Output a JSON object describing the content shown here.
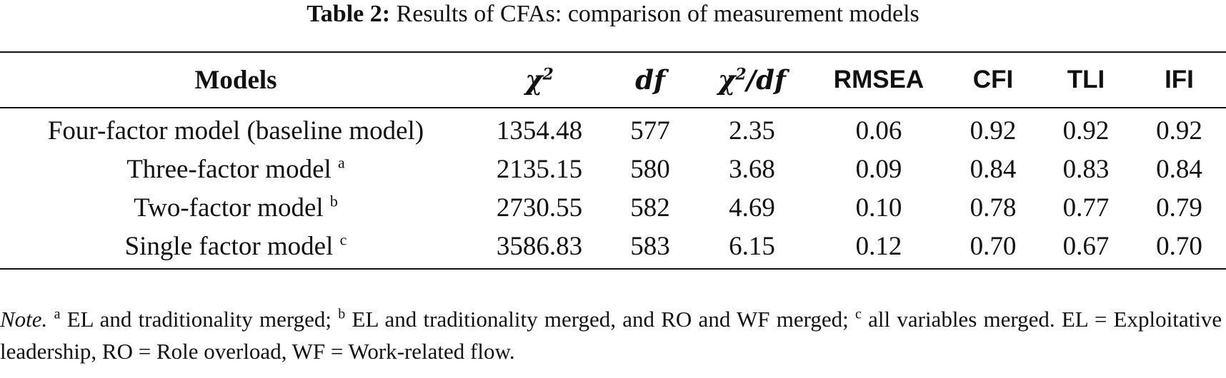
{
  "caption": {
    "label": "Table 2:",
    "title": "Results of CFAs: comparison of measurement models"
  },
  "table": {
    "headers": {
      "models": "Models",
      "chi_sq_base": "χ",
      "chi_sq_exp": "2",
      "df": "df",
      "chi_df_base": "χ",
      "chi_df_exp": "2",
      "chi_df_rest": "/df",
      "rmsea": "RMSEA",
      "cfi": "CFI",
      "tli": "TLI",
      "ifi": "IFI"
    },
    "rows": [
      {
        "model": "Four-factor model (baseline model)",
        "sup": "",
        "chi2": "1354.48",
        "df": "577",
        "chi2_df": "2.35",
        "rmsea": "0.06",
        "cfi": "0.92",
        "tli": "0.92",
        "ifi": "0.92"
      },
      {
        "model": "Three-factor model",
        "sup": "a",
        "chi2": "2135.15",
        "df": "580",
        "chi2_df": "3.68",
        "rmsea": "0.09",
        "cfi": "0.84",
        "tli": "0.83",
        "ifi": "0.84"
      },
      {
        "model": "Two-factor model",
        "sup": "b",
        "chi2": "2730.55",
        "df": "582",
        "chi2_df": "4.69",
        "rmsea": "0.10",
        "cfi": "0.78",
        "tli": "0.77",
        "ifi": "0.79"
      },
      {
        "model": "Single factor model",
        "sup": "c",
        "chi2": "3586.83",
        "df": "583",
        "chi2_df": "6.15",
        "rmsea": "0.12",
        "cfi": "0.70",
        "tli": "0.67",
        "ifi": "0.70"
      }
    ]
  },
  "note": {
    "label": "Note.",
    "sup_a": "a",
    "text_a": "EL and traditionality merged;",
    "sup_b": "b",
    "text_b": "EL and traditionality merged, and RO and WF merged;",
    "sup_c": "c",
    "text_c": "all variables merged. EL = Exploitative leadership, RO = Role overload, WF = Work-related flow."
  }
}
